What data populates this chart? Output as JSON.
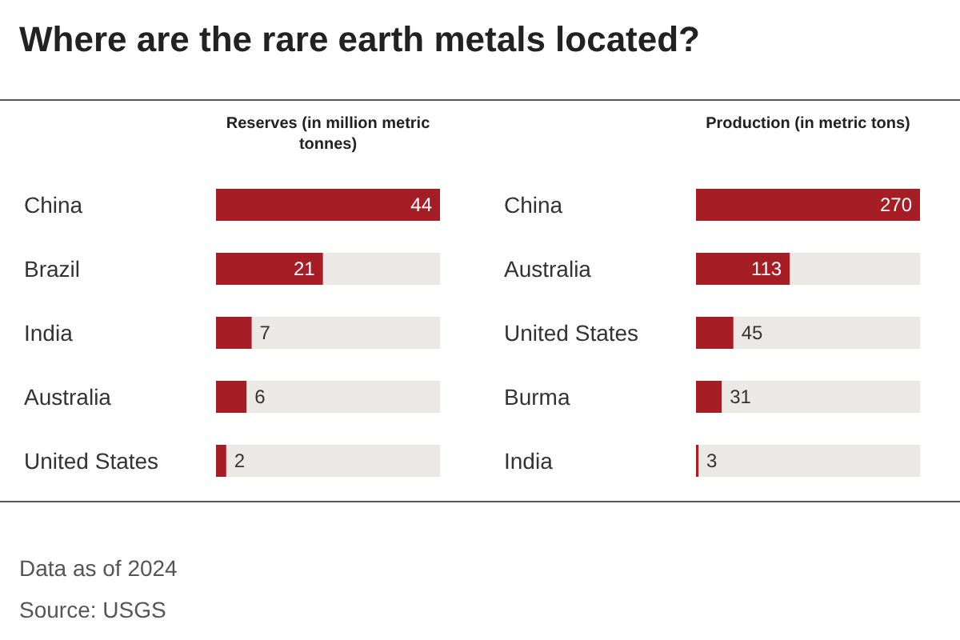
{
  "chart_data": [
    {
      "type": "bar",
      "orientation": "horizontal",
      "title": "Where are the rare earth metals located?",
      "xlabel": "Reserves (in million metric tonnes)",
      "categories": [
        "China",
        "Brazil",
        "India",
        "Australia",
        "United States"
      ],
      "values": [
        44,
        21,
        7,
        6,
        2
      ],
      "color": "#a51d25",
      "data_labels": true,
      "annotations": [
        "Data as of 2024",
        "Source: USGS"
      ]
    },
    {
      "type": "bar",
      "orientation": "horizontal",
      "xlabel": "Production (in metric tons)",
      "categories": [
        "China",
        "Australia",
        "United States",
        "Burma",
        "India"
      ],
      "values": [
        270,
        113,
        45,
        31,
        3
      ],
      "color": "#a51d25",
      "data_labels": true
    }
  ]
}
